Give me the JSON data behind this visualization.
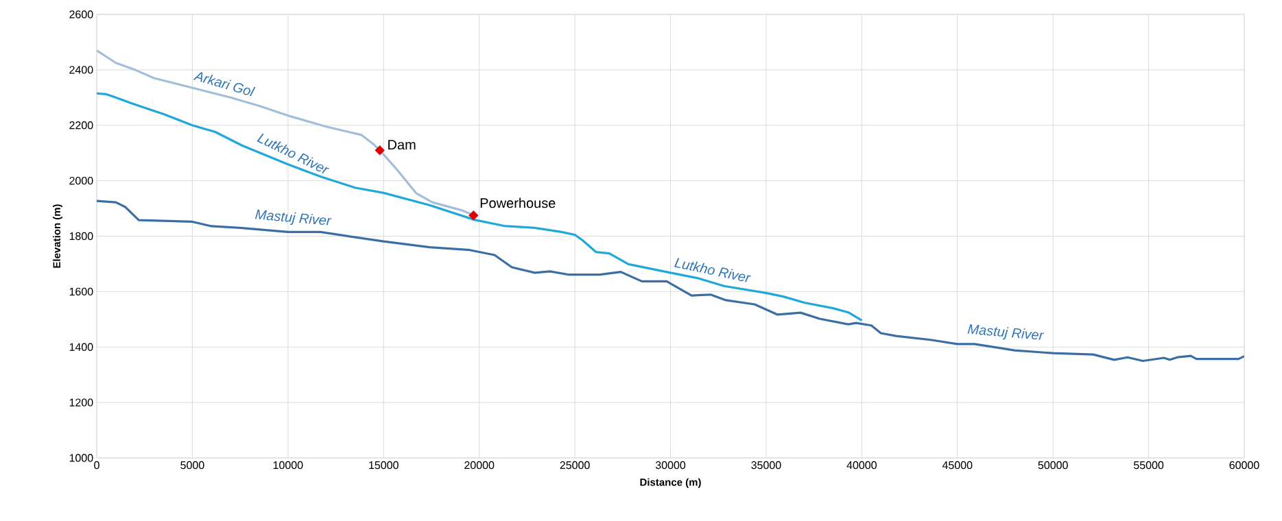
{
  "chart_data": {
    "type": "line",
    "xlabel": "Distance (m)",
    "ylabel": "Elevation (m)",
    "xlim": [
      0,
      60000
    ],
    "ylim": [
      1000,
      2600
    ],
    "xticks": [
      0,
      5000,
      10000,
      15000,
      20000,
      25000,
      30000,
      35000,
      40000,
      45000,
      50000,
      55000,
      60000
    ],
    "yticks": [
      1000,
      1200,
      1400,
      1600,
      1800,
      2000,
      2200,
      2400,
      2600
    ],
    "grid": true,
    "line_style": "solid",
    "series": [
      {
        "name": "Mastuj River",
        "color": "#3a6ea5",
        "x": [
          0,
          1000,
          1500,
          2200,
          5000,
          6000,
          7500,
          10000,
          11700,
          15000,
          17400,
          19500,
          20800,
          21700,
          22900,
          23700,
          24700,
          26300,
          27400,
          28500,
          29800,
          31100,
          32100,
          32900,
          34400,
          35600,
          36800,
          37800,
          39300,
          39700,
          40500,
          41000,
          41800,
          43600,
          45000,
          45900,
          48000,
          50000,
          52100,
          53200,
          53900,
          54700,
          55800,
          56100,
          56500,
          57200,
          57500,
          58900,
          59700,
          60000
        ],
        "values": [
          1927,
          1922,
          1905,
          1858,
          1852,
          1836,
          1830,
          1815,
          1815,
          1781,
          1760,
          1750,
          1732,
          1688,
          1668,
          1673,
          1661,
          1661,
          1671,
          1637,
          1637,
          1586,
          1589,
          1569,
          1554,
          1517,
          1524,
          1502,
          1482,
          1487,
          1478,
          1450,
          1440,
          1426,
          1411,
          1411,
          1388,
          1378,
          1373,
          1354,
          1363,
          1350,
          1361,
          1354,
          1363,
          1368,
          1357,
          1357,
          1357,
          1367
        ]
      },
      {
        "name": "Lutkho River",
        "color": "#1ea8dc",
        "x": [
          0,
          500,
          1000,
          1800,
          3500,
          5000,
          6200,
          7600,
          10000,
          11700,
          13500,
          15000,
          17400,
          19750,
          21300,
          22900,
          24300,
          25000,
          25400,
          26100,
          26800,
          27800,
          30000,
          31400,
          32800,
          35000,
          35900,
          37000,
          38500,
          39300,
          40000
        ],
        "values": [
          2315,
          2312,
          2300,
          2280,
          2240,
          2200,
          2176,
          2127,
          2059,
          2015,
          1975,
          1956,
          1912,
          1859,
          1837,
          1830,
          1815,
          1805,
          1785,
          1743,
          1738,
          1699,
          1668,
          1649,
          1620,
          1595,
          1582,
          1560,
          1540,
          1525,
          1496
        ]
      },
      {
        "name": "Arkari Gol",
        "color": "#a3bedb",
        "x": [
          0,
          1000,
          2000,
          3000,
          5000,
          7000,
          8500,
          10000,
          12000,
          13850,
          14500,
          14800,
          15700,
          16700,
          17550,
          19100,
          19700
        ],
        "values": [
          2470,
          2425,
          2400,
          2370,
          2335,
          2300,
          2270,
          2235,
          2195,
          2165,
          2130,
          2110,
          2040,
          1955,
          1922,
          1893,
          1876
        ]
      },
      {
        "type": "scatter",
        "marker": "diamond",
        "color": "#e00000",
        "x": [
          14800,
          19700
        ],
        "values": [
          2110,
          1875
        ]
      }
    ],
    "annotations": [
      {
        "text": "Dam",
        "x": 14800,
        "y": 2110
      },
      {
        "text": "Powerhouse",
        "x": 19700,
        "y": 1875
      },
      {
        "text": "Lutkho River",
        "x": 32060,
        "y": 1634
      },
      {
        "text": "Mastuj River",
        "x": 47450,
        "y": 1400
      }
    ]
  }
}
